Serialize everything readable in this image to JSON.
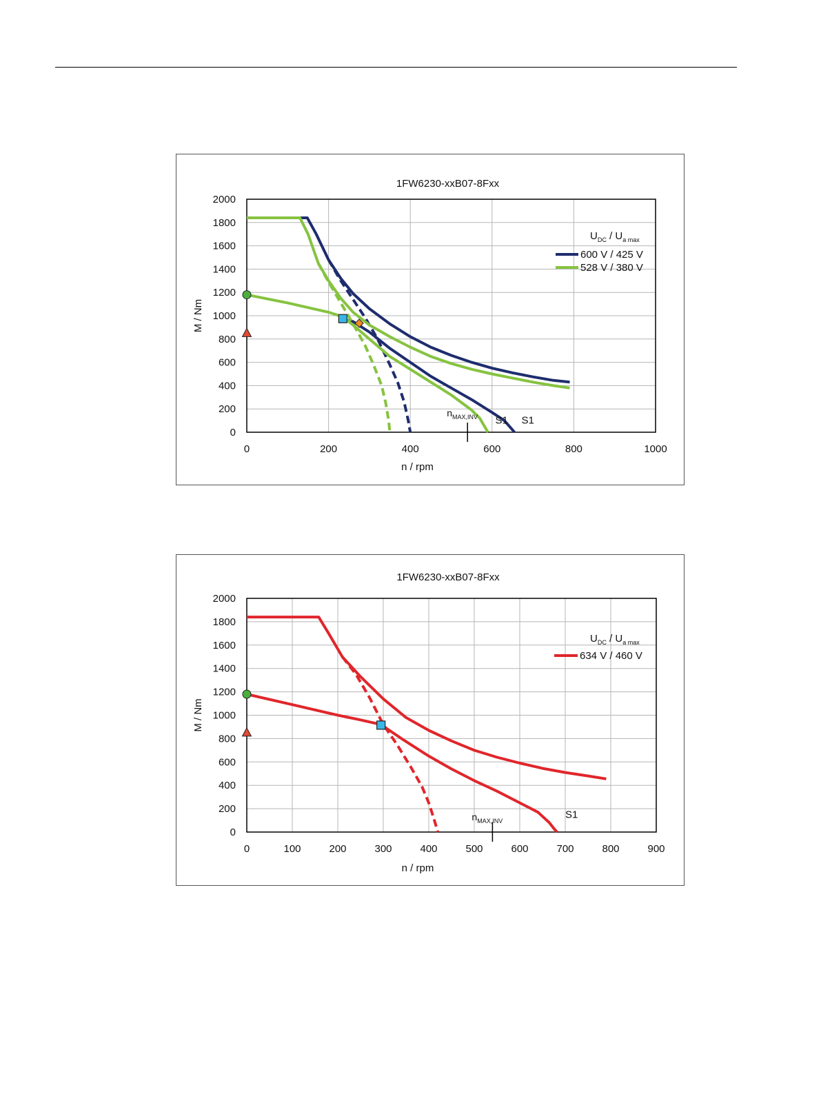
{
  "chart_data": [
    {
      "type": "line",
      "title": "1FW6230-xxB07-8Fxx",
      "xlabel": "n / rpm",
      "ylabel": "M / Nm",
      "xlim": [
        0,
        1000
      ],
      "ylim": [
        0,
        2000
      ],
      "xticks": [
        0,
        200,
        400,
        600,
        800,
        1000
      ],
      "yticks": [
        0,
        200,
        400,
        600,
        800,
        1000,
        1200,
        1400,
        1600,
        1800,
        2000
      ],
      "grid": true,
      "legend_position": "top-right",
      "legend_title": {
        "u": "U",
        "u_sub": "DC",
        "sep": "/",
        "u2": "U",
        "u2_sub": "a max"
      },
      "series": [
        {
          "name": "600 V / 425 V",
          "color": "#1f2d6e",
          "style": "solid",
          "x": [
            0,
            148,
            170,
            200,
            230,
            260,
            300,
            350,
            400,
            450,
            500,
            550,
            600,
            650,
            700,
            750,
            790
          ],
          "y": [
            1840,
            1840,
            1700,
            1480,
            1320,
            1190,
            1060,
            930,
            820,
            730,
            660,
            600,
            550,
            510,
            475,
            445,
            430
          ]
        },
        {
          "name": "",
          "color": "#1f2d6e",
          "style": "dashed",
          "x": [
            200,
            230,
            260,
            290,
            320,
            350,
            370,
            385,
            395,
            400
          ],
          "y": [
            1480,
            1300,
            1140,
            980,
            800,
            580,
            420,
            260,
            100,
            0
          ]
        },
        {
          "name": "",
          "color": "#1f2d6e",
          "style": "solid",
          "x": [
            235,
            260,
            300,
            350,
            400,
            450,
            500,
            550,
            600,
            630,
            645,
            655
          ],
          "y": [
            970,
            950,
            860,
            720,
            600,
            480,
            380,
            280,
            170,
            100,
            40,
            0
          ]
        },
        {
          "name": "528 V / 380 V",
          "color": "#86c340",
          "style": "solid",
          "x": [
            0,
            130,
            150,
            175,
            200,
            230,
            260,
            300,
            350,
            400,
            450,
            500,
            550,
            600,
            650,
            700,
            750,
            790
          ],
          "y": [
            1840,
            1840,
            1700,
            1450,
            1300,
            1150,
            1030,
            920,
            820,
            730,
            650,
            590,
            540,
            500,
            465,
            430,
            400,
            380
          ]
        },
        {
          "name": "",
          "color": "#86c340",
          "style": "dashed",
          "x": [
            175,
            200,
            230,
            260,
            290,
            310,
            330,
            340,
            347,
            350
          ],
          "y": [
            1450,
            1290,
            1110,
            930,
            740,
            580,
            400,
            250,
            100,
            0
          ]
        },
        {
          "name": "",
          "color": "#86c340",
          "style": "solid",
          "x": [
            0,
            100,
            200,
            235,
            260,
            300,
            350,
            400,
            450,
            500,
            550,
            570,
            580,
            590
          ],
          "y": [
            1180,
            1110,
            1030,
            990,
            920,
            800,
            650,
            540,
            430,
            320,
            190,
            120,
            60,
            0
          ]
        }
      ],
      "markers": [
        {
          "shape": "circle",
          "x": 0,
          "y": 1180,
          "color": "#4caf3c"
        },
        {
          "shape": "triangle",
          "x": 0,
          "y": 850,
          "color": "#e24a33"
        },
        {
          "shape": "square",
          "x": 235,
          "y": 975,
          "color": "#39b6e8"
        },
        {
          "shape": "diamond",
          "x": 275,
          "y": 935,
          "color": "#f08a24"
        }
      ],
      "annotations": [
        {
          "label": "S1",
          "x": 608,
          "y": 75
        },
        {
          "label": "S1",
          "x": 672,
          "y": 75
        }
      ],
      "n_max_inv": {
        "label_main": "n",
        "label_sub": "MAX,INV",
        "x": 540
      }
    },
    {
      "type": "line",
      "title": "1FW6230-xxB07-8Fxx",
      "xlabel": "n / rpm",
      "ylabel": "M / Nm",
      "xlim": [
        0,
        900
      ],
      "ylim": [
        0,
        2000
      ],
      "xticks": [
        0,
        100,
        200,
        300,
        400,
        500,
        600,
        700,
        800,
        900
      ],
      "yticks": [
        0,
        200,
        400,
        600,
        800,
        1000,
        1200,
        1400,
        1600,
        1800,
        2000
      ],
      "grid": true,
      "legend_position": "top-right",
      "legend_title": {
        "u": "U",
        "u_sub": "DC",
        "sep": "/",
        "u2": "U",
        "u2_sub": "a max"
      },
      "series": [
        {
          "name": "634 V / 460 V",
          "color": "#e0262b",
          "style": "solid",
          "x": [
            0,
            158,
            180,
            210,
            250,
            300,
            350,
            400,
            450,
            500,
            550,
            600,
            650,
            700,
            750,
            790
          ],
          "y": [
            1840,
            1840,
            1700,
            1500,
            1330,
            1140,
            980,
            870,
            780,
            700,
            640,
            590,
            545,
            510,
            480,
            455
          ]
        },
        {
          "name": "",
          "color": "#e0262b",
          "style": "dashed",
          "x": [
            210,
            240,
            270,
            300,
            330,
            360,
            385,
            400,
            410,
            417,
            420
          ],
          "y": [
            1500,
            1350,
            1150,
            920,
            750,
            560,
            390,
            250,
            130,
            40,
            0
          ]
        },
        {
          "name": "",
          "color": "#e0262b",
          "style": "solid",
          "x": [
            0,
            100,
            200,
            250,
            295,
            340,
            400,
            450,
            500,
            550,
            600,
            640,
            665,
            675,
            682
          ],
          "y": [
            1180,
            1090,
            1000,
            960,
            920,
            800,
            650,
            540,
            440,
            350,
            250,
            170,
            80,
            30,
            0
          ]
        }
      ],
      "markers": [
        {
          "shape": "circle",
          "x": 0,
          "y": 1180,
          "color": "#4caf3c"
        },
        {
          "shape": "triangle",
          "x": 0,
          "y": 850,
          "color": "#e24a33"
        },
        {
          "shape": "square",
          "x": 295,
          "y": 915,
          "color": "#39b6e8"
        }
      ],
      "annotations": [
        {
          "label": "S1",
          "x": 700,
          "y": 120
        }
      ],
      "n_max_inv": {
        "label_main": "n",
        "label_sub": "MAX,INV",
        "x": 540
      }
    }
  ]
}
